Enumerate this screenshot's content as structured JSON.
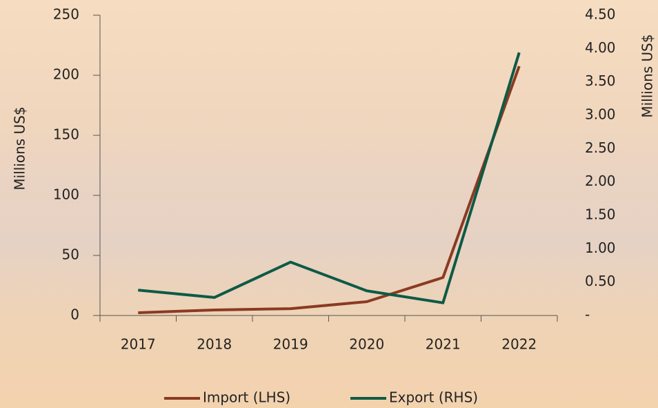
{
  "chart_data": {
    "type": "line",
    "categories": [
      "2017",
      "2018",
      "2019",
      "2020",
      "2021",
      "2022"
    ],
    "series": [
      {
        "name": "Import (LHS)",
        "color": "#8b3a22",
        "axis": "y",
        "values": [
          2.3,
          4.6,
          5.7,
          11.5,
          31.6,
          207.5
        ]
      },
      {
        "name": "Export (RHS)",
        "color": "#0d5a46",
        "axis": "y2",
        "values": [
          0.38,
          0.27,
          0.8,
          0.37,
          0.19,
          3.94
        ]
      }
    ],
    "ylabel": "Millions US$",
    "y2label": "Millions US$",
    "ylim": [
      0,
      250
    ],
    "yticks": [
      0,
      50,
      100,
      150,
      200,
      250
    ],
    "y2lim": [
      0,
      4.5
    ],
    "y2ticks": [
      {
        "value": 0,
        "label": "-"
      },
      {
        "value": 0.5,
        "label": "0.50"
      },
      {
        "value": 1,
        "label": "1.00"
      },
      {
        "value": 1.5,
        "label": "1.50"
      },
      {
        "value": 2,
        "label": "2.00"
      },
      {
        "value": 2.5,
        "label": "2.50"
      },
      {
        "value": 3,
        "label": "3.00"
      },
      {
        "value": 3.5,
        "label": "3.50"
      },
      {
        "value": 4,
        "label": "4.00"
      },
      {
        "value": 4.5,
        "label": "4.50"
      }
    ],
    "legend": "bottom",
    "grid": false
  }
}
